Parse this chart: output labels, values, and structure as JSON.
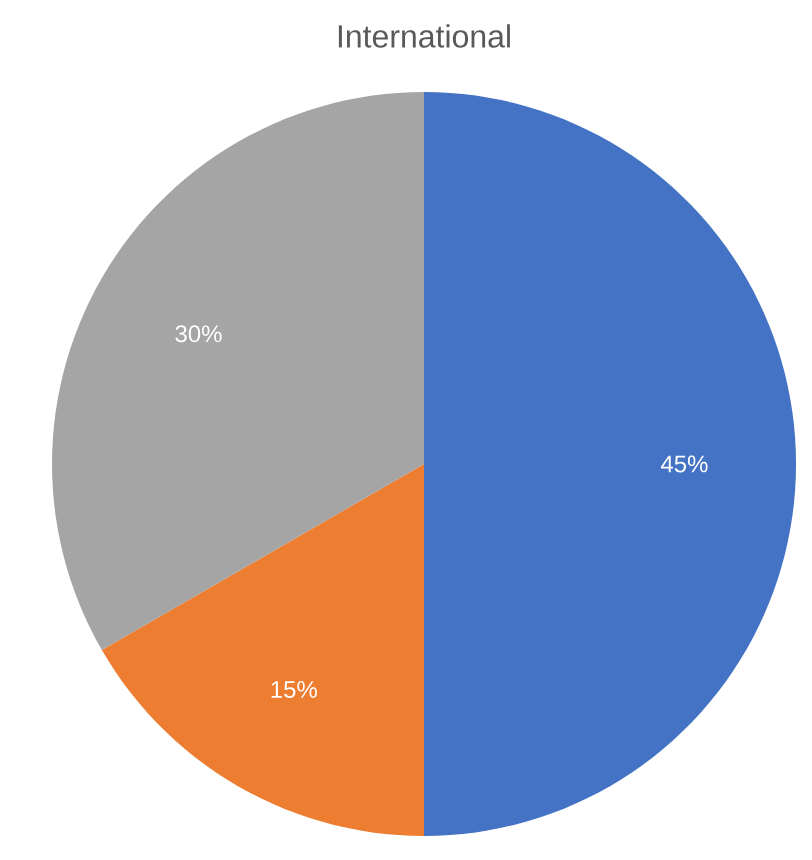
{
  "chart_data": {
    "type": "pie",
    "title": "International",
    "categories": [
      null,
      null,
      null
    ],
    "values": [
      45,
      15,
      30
    ],
    "value_labels": [
      "45%",
      "15%",
      "30%"
    ],
    "colors": [
      "#4472c4",
      "#ed7d31",
      "#a5a5a5"
    ]
  }
}
